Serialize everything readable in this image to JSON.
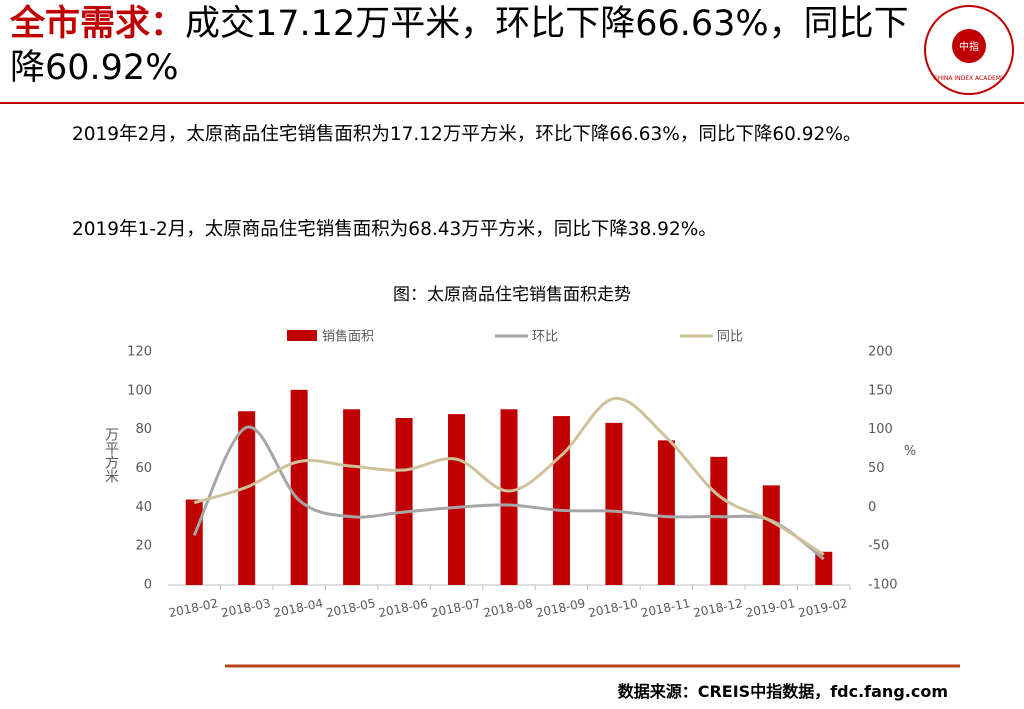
{
  "header": {
    "title_label": "全市需求：",
    "title_rest": "成交17.12万平米，环比下降66.63%，同比下降60.92%",
    "logo_center": "中指",
    "logo_ring": "CHINA INDEX ACADEMY"
  },
  "paragraphs": [
    "2019年2月，太原商品住宅销售面积为17.12万平方米，环比下降66.63%，同比下降60.92%。",
    "2019年1-2月，太原商品住宅销售面积为68.43万平方米，同比下降38.92%。"
  ],
  "chart_data": {
    "type": "bar-line",
    "title": "图：太原商品住宅销售面积走势",
    "categories": [
      "2018-02",
      "2018-03",
      "2018-04",
      "2018-05",
      "2018-06",
      "2018-07",
      "2018-08",
      "2018-09",
      "2018-10",
      "2018-11",
      "2018-12",
      "2019-01",
      "2019-02"
    ],
    "series": [
      {
        "name": "销售面积",
        "color": "#c00000",
        "values": [
          44,
          89.5,
          100.5,
          90.5,
          86,
          88,
          90.5,
          87,
          83.5,
          74.5,
          66,
          51.31,
          17.12
        ]
      },
      {
        "name": "环比",
        "color": "#a6a6a6",
        "axis": "y2",
        "values": [
          -36,
          103,
          9,
          -12,
          -6,
          0,
          3,
          -4,
          -5,
          -12,
          -12,
          -17,
          -66.63
        ]
      },
      {
        "name": "同比",
        "color": "#cfc29a",
        "axis": "y2",
        "values": [
          6,
          26,
          59,
          53,
          48,
          62,
          21,
          67,
          140,
          90,
          15,
          -18,
          -60.92
        ]
      }
    ],
    "ylabel": "万平方米",
    "y2label": "%",
    "ylim": [
      0,
      120
    ],
    "yticks": [
      0,
      20,
      40,
      60,
      80,
      100,
      120
    ],
    "y2lim": [
      -100,
      200
    ],
    "y2ticks": [
      -100,
      -50,
      0,
      50,
      100,
      150,
      200
    ]
  },
  "source": "数据来源：CREIS中指数据，fdc.fang.com"
}
